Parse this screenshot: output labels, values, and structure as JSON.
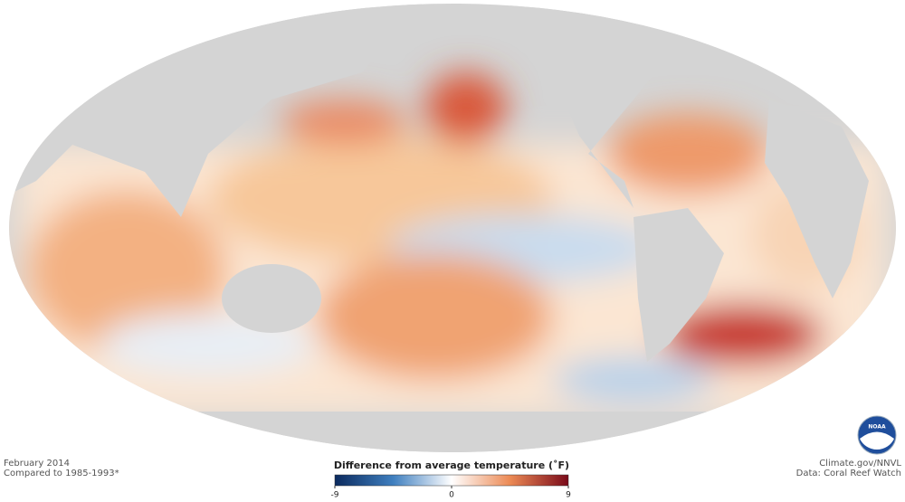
{
  "footer_left": {
    "date": "February 2014",
    "baseline": "Compared to 1985-1993*"
  },
  "footer_right": {
    "credit": "Climate.gov/NNVL",
    "source": "Data: Coral Reef Watch"
  },
  "logo": "NOAA",
  "colorbar": {
    "title": "Difference from average temperature (˚F)",
    "lim": [
      -9,
      9
    ],
    "ticks": [
      -9,
      0,
      9
    ]
  }
}
